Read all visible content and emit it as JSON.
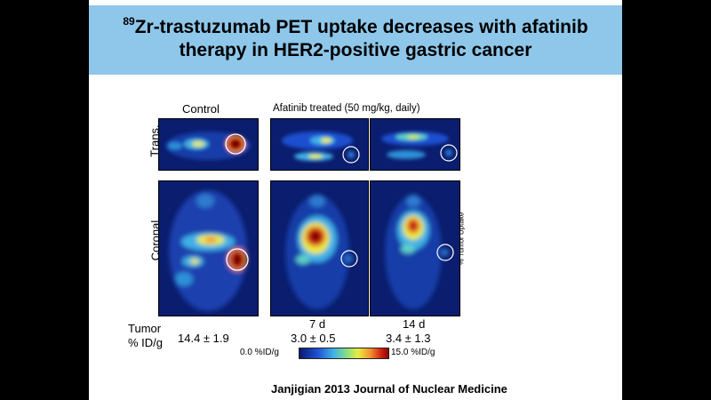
{
  "slide": {
    "title_line1_sup": "89",
    "title_line1_rest": "Zr-trastuzumab PET uptake decreases with afatinib",
    "title_line2": "therapy in HER2-positive gastric cancer",
    "citation": "Janjigian 2013 Journal of Nuclear Medicine"
  },
  "figure": {
    "column_headers": [
      "Control",
      "Afatinib treated (50 mg/kg, daily)"
    ],
    "row_labels": [
      "Trans.",
      "Coronal"
    ],
    "side_label": "% Tumor Uptake",
    "timepoints": [
      "7 d",
      "14 d"
    ],
    "tumor_label_line1": "Tumor",
    "tumor_label_line2": "% ID/g",
    "tumor_values": [
      "14.4 ± 1.9",
      "3.0 ± 0.5",
      "3.4 ± 1.3"
    ],
    "scale_min": "0.0 %ID/g",
    "scale_max": "15.0 %ID/g",
    "colormap": [
      "#0a1a70",
      "#1f4fd0",
      "#3fb0e8",
      "#7fdc8c",
      "#e8ec40",
      "#f29030",
      "#d02010",
      "#8a0808"
    ]
  }
}
